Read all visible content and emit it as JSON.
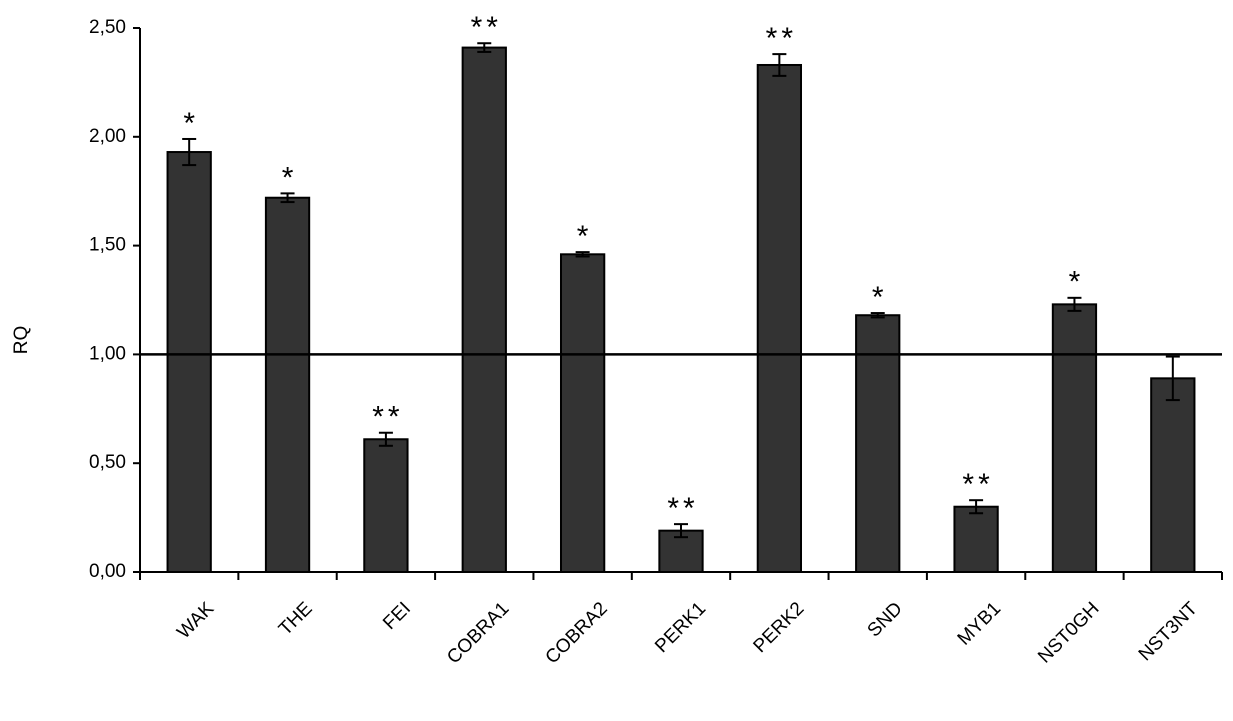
{
  "chart_data": {
    "type": "bar",
    "y_label": "RQ",
    "categories": [
      "WAK",
      "THE",
      "FEI",
      "COBRA1",
      "COBRA2",
      "PERK1",
      "PERK2",
      "SND",
      "MYB1",
      "NST0GH",
      "NST3NT"
    ],
    "values": [
      1.93,
      1.72,
      0.61,
      2.41,
      1.46,
      0.19,
      2.33,
      1.18,
      0.3,
      1.23,
      0.89
    ],
    "errors": [
      0.06,
      0.02,
      0.03,
      0.02,
      0.01,
      0.03,
      0.05,
      0.01,
      0.03,
      0.03,
      0.1
    ],
    "significance": [
      "*",
      "*",
      "**",
      "**",
      "*",
      "**",
      "**",
      "*",
      "**",
      "*",
      null
    ],
    "color": "#333333",
    "reference_line": 1,
    "ylim": [
      0,
      2.5
    ],
    "yticks": [
      {
        "value": 0,
        "label": "0,00"
      },
      {
        "value": 0.5,
        "label": "0,50"
      },
      {
        "value": 1,
        "label": "1,00"
      },
      {
        "value": 1.5,
        "label": "1,50"
      },
      {
        "value": 2,
        "label": "2,00"
      },
      {
        "value": 2.5,
        "label": "2,50"
      }
    ]
  }
}
